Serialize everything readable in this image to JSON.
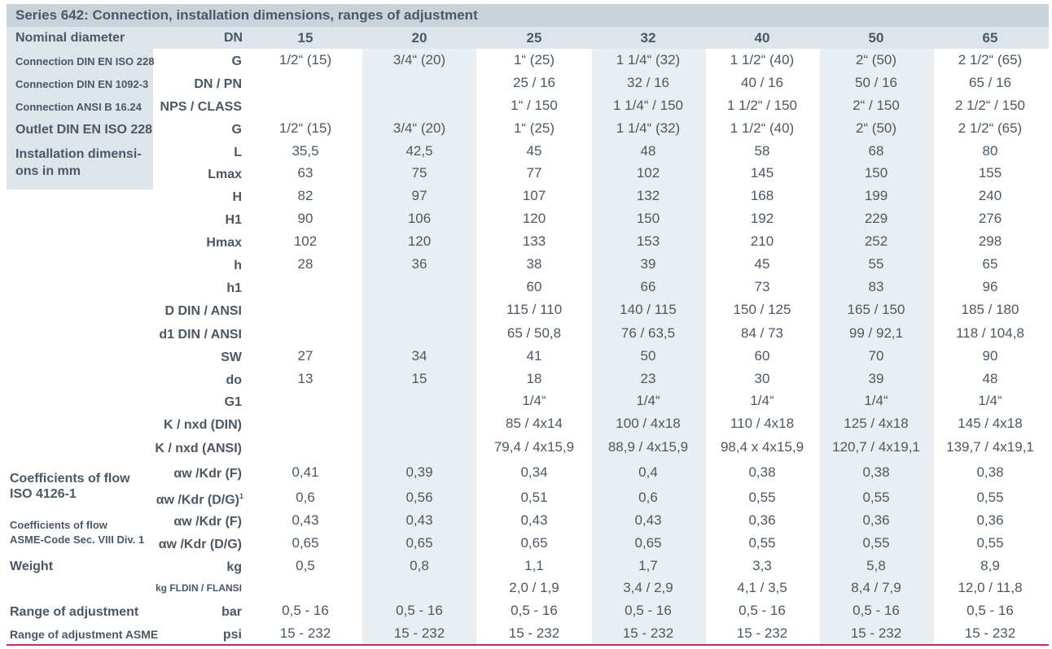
{
  "title": "Series 642: Connection, installation dimensions, ranges of adjustment",
  "header": {
    "label": "Nominal diameter",
    "symbol": "DN",
    "columns": [
      "15",
      "20",
      "25",
      "32",
      "40",
      "50",
      "65"
    ]
  },
  "group_labels": {
    "conn_din_iso": "Connection DIN EN ISO 228",
    "conn_din_1092": "Connection DIN EN 1092-3",
    "conn_ansi": "Connection ANSI B 16.24",
    "outlet": "Outlet DIN EN ISO 228",
    "install_1": "Installation dimensi-",
    "install_2": "ons in mm",
    "coeff_iso_1": "Coefficients of flow",
    "coeff_iso_2": "ISO 4126-1",
    "coeff_asme_1": "Coefficients of flow",
    "coeff_asme_2": "ASME-Code Sec. VIII Div. 1",
    "weight": "Weight",
    "range": "Range of adjustment",
    "range_asme": "Range of adjustment ASME"
  },
  "rows": [
    {
      "symbol": "G",
      "values": [
        "1/2“ (15)",
        "3/4“ (20)",
        "1“ (25)",
        "1 1/4“ (32)",
        "1 1/2“ (40)",
        "2“ (50)",
        "2 1/2“ (65)"
      ]
    },
    {
      "symbol": "DN / PN",
      "values": [
        "",
        "",
        "25 / 16",
        "32 / 16",
        "40 / 16",
        "50 / 16",
        "65 / 16"
      ]
    },
    {
      "symbol": "NPS / CLASS",
      "values": [
        "",
        "",
        "1“ / 150",
        "1 1/4“ / 150",
        "1 1/2“ / 150",
        "2“ / 150",
        "2 1/2“ / 150"
      ]
    },
    {
      "symbol": "G",
      "values": [
        "1/2“ (15)",
        "3/4“ (20)",
        "1“ (25)",
        "1 1/4“ (32)",
        "1 1/2“ (40)",
        "2“ (50)",
        "2 1/2“ (65)"
      ]
    },
    {
      "symbol": "L",
      "values": [
        "35,5",
        "42,5",
        "45",
        "48",
        "58",
        "68",
        "80"
      ]
    },
    {
      "symbol": "Lmax",
      "values": [
        "63",
        "75",
        "77",
        "102",
        "145",
        "150",
        "155"
      ]
    },
    {
      "symbol": "H",
      "values": [
        "82",
        "97",
        "107",
        "132",
        "168",
        "199",
        "240"
      ]
    },
    {
      "symbol": "H1",
      "values": [
        "90",
        "106",
        "120",
        "150",
        "192",
        "229",
        "276"
      ]
    },
    {
      "symbol": "Hmax",
      "values": [
        "102",
        "120",
        "133",
        "153",
        "210",
        "252",
        "298"
      ]
    },
    {
      "symbol": "h",
      "values": [
        "28",
        "36",
        "38",
        "39",
        "45",
        "55",
        "65"
      ]
    },
    {
      "symbol": "h1",
      "values": [
        "",
        "",
        "60",
        "66",
        "73",
        "83",
        "96"
      ]
    },
    {
      "symbol": "D DIN / ANSI",
      "values": [
        "",
        "",
        "115 / 110",
        "140 / 115",
        "150 / 125",
        "165 / 150",
        "185 / 180"
      ]
    },
    {
      "symbol": "d1 DIN / ANSI",
      "values": [
        "",
        "",
        "65 / 50,8",
        "76 / 63,5",
        "84 / 73",
        "99 / 92,1",
        "118 / 104,8"
      ]
    },
    {
      "symbol": "SW",
      "values": [
        "27",
        "34",
        "41",
        "50",
        "60",
        "70",
        "90"
      ]
    },
    {
      "symbol": "do",
      "values": [
        "13",
        "15",
        "18",
        "23",
        "30",
        "39",
        "48"
      ]
    },
    {
      "symbol": "G1",
      "values": [
        "",
        "",
        "1/4“",
        "1/4“",
        "1/4“",
        "1/4“",
        "1/4“"
      ]
    },
    {
      "symbol": "K / nxd (DIN)",
      "values": [
        "",
        "",
        "85 / 4x14",
        "100 / 4x18",
        "110 / 4x18",
        "125 / 4x18",
        "145 / 4x18"
      ]
    },
    {
      "symbol": "K / nxd (ANSI)",
      "values": [
        "",
        "",
        "79,4 / 4x15,9",
        "88,9 / 4x15,9",
        "98,4 x 4x15,9",
        "120,7 / 4x19,1",
        "139,7 / 4x19,1"
      ]
    },
    {
      "symbol": "αw /Kdr (F)",
      "values": [
        "0,41",
        "0,39",
        "0,34",
        "0,4",
        "0,38",
        "0,38",
        "0,38"
      ]
    },
    {
      "symbol": "αw /Kdr (D/G)",
      "sup": "1",
      "values": [
        "0,6",
        "0,56",
        "0,51",
        "0,6",
        "0,55",
        "0,55",
        "0,55"
      ]
    },
    {
      "symbol": "αw /Kdr (F)",
      "values": [
        "0,43",
        "0,43",
        "0,43",
        "0,43",
        "0,36",
        "0,36",
        "0,36"
      ]
    },
    {
      "symbol": "αw /Kdr (D/G)",
      "values": [
        "0,65",
        "0,65",
        "0,65",
        "0,65",
        "0,55",
        "0,55",
        "0,55"
      ]
    },
    {
      "symbol": "kg",
      "values": [
        "0,5",
        "0,8",
        "1,1",
        "1,7",
        "3,3",
        "5,8",
        "8,9"
      ]
    },
    {
      "symbol": "kg FLDIN / FLANSI",
      "values": [
        "",
        "",
        "2,0 / 1,9",
        "3,4 / 2,9",
        "4,1 / 3,5",
        "8,4 / 7,9",
        "12,0 / 11,8"
      ]
    },
    {
      "symbol": "bar",
      "values": [
        "0,5 - 16",
        "0,5 - 16",
        "0,5 - 16",
        "0,5 - 16",
        "0,5 - 16",
        "0,5 - 16",
        "0,5 - 16"
      ]
    },
    {
      "symbol": "psi",
      "values": [
        "15 - 232",
        "15 - 232",
        "15 - 232",
        "15 - 232",
        "15 - 232",
        "15 - 232",
        "15 - 232"
      ]
    }
  ]
}
